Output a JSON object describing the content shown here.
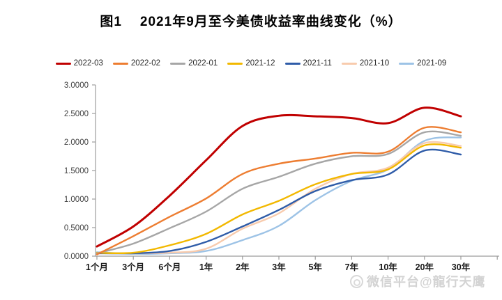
{
  "title": {
    "prefix": "图1",
    "main": "2021年9月至今美债收益率曲线变化（%）"
  },
  "watermark": {
    "text": "微信平台@龍行天鹰",
    "logo": "chat-bubble-logo"
  },
  "chart_data": {
    "type": "line",
    "title": "图1 2021年9月至今美债收益率曲线变化（%）",
    "xlabel": "",
    "ylabel": "",
    "grid": false,
    "legend_position": "top",
    "smooth_lines": true,
    "ylim": [
      0,
      3
    ],
    "ytick_step": 0.5,
    "ytick_labels": [
      "0.0000",
      "0.5000",
      "1.0000",
      "1.5000",
      "2.0000",
      "2.5000",
      "3.0000"
    ],
    "categories": [
      "1个月",
      "3个月",
      "6个月",
      "1年",
      "2年",
      "3年",
      "5年",
      "7年",
      "10年",
      "20年",
      "30年"
    ],
    "series": [
      {
        "name": "2022-03",
        "color": "#C00000",
        "width": 3.0,
        "values": [
          0.17,
          0.52,
          1.06,
          1.68,
          2.28,
          2.46,
          2.45,
          2.42,
          2.33,
          2.6,
          2.45
        ]
      },
      {
        "name": "2022-02",
        "color": "#ED7D31",
        "width": 2.4,
        "values": [
          0.03,
          0.35,
          0.69,
          1.01,
          1.44,
          1.62,
          1.71,
          1.81,
          1.83,
          2.25,
          2.17
        ]
      },
      {
        "name": "2022-01",
        "color": "#A6A6A6",
        "width": 2.4,
        "values": [
          0.05,
          0.22,
          0.49,
          0.78,
          1.18,
          1.39,
          1.62,
          1.75,
          1.79,
          2.17,
          2.11
        ]
      },
      {
        "name": "2021-12",
        "color": "#F2B800",
        "width": 2.4,
        "values": [
          0.06,
          0.06,
          0.19,
          0.39,
          0.73,
          0.97,
          1.26,
          1.44,
          1.52,
          1.94,
          1.9
        ]
      },
      {
        "name": "2021-11",
        "color": "#2F5CA8",
        "width": 2.4,
        "values": [
          0.05,
          0.05,
          0.09,
          0.25,
          0.52,
          0.81,
          1.14,
          1.33,
          1.43,
          1.85,
          1.78
        ]
      },
      {
        "name": "2021-10",
        "color": "#F8CBAD",
        "width": 2.4,
        "values": [
          0.05,
          0.05,
          0.06,
          0.13,
          0.48,
          0.75,
          1.18,
          1.44,
          1.55,
          1.98,
          1.93
        ]
      },
      {
        "name": "2021-09",
        "color": "#9DC3E6",
        "width": 2.4,
        "values": [
          0.07,
          0.04,
          0.05,
          0.09,
          0.28,
          0.53,
          0.98,
          1.32,
          1.52,
          2.02,
          2.08
        ]
      }
    ]
  },
  "style": {
    "axis_color": "#9C9C9C",
    "ytick_label_color": "#3F3F3F",
    "xtick_label_color": "#1A1A1A"
  }
}
